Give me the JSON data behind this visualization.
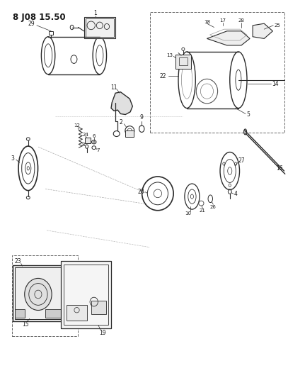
{
  "title": "8 J08 15.50",
  "bg_color": "#ffffff",
  "line_color": "#2a2a2a",
  "text_color": "#1a1a1a",
  "fig_width": 4.07,
  "fig_height": 5.33,
  "dpi": 100
}
